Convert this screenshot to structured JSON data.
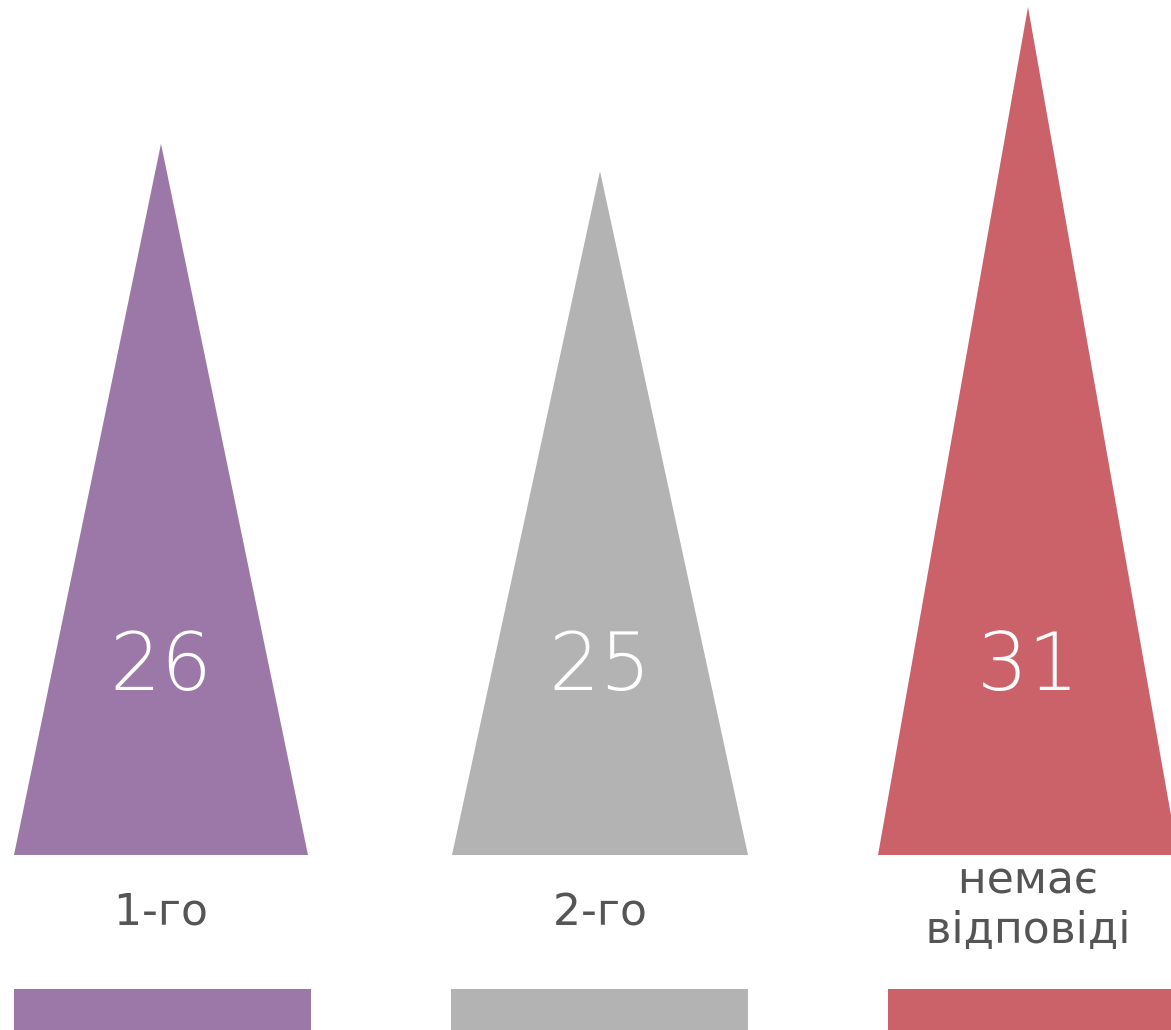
{
  "chart_data": {
    "type": "bar",
    "categories": [
      "1-го",
      "2-го",
      "немає відповіді"
    ],
    "category_lines": [
      [
        "1-го"
      ],
      [
        "2-го"
      ],
      [
        "немає",
        "відповіді"
      ]
    ],
    "values": [
      26,
      25,
      31
    ],
    "value_labels": [
      "26",
      "25",
      "31"
    ],
    "colors": [
      "#9b78a8",
      "#b3b3b3",
      "#cb626a"
    ],
    "title": "",
    "xlabel": "",
    "ylabel": "",
    "grid": false,
    "legend": "none"
  }
}
